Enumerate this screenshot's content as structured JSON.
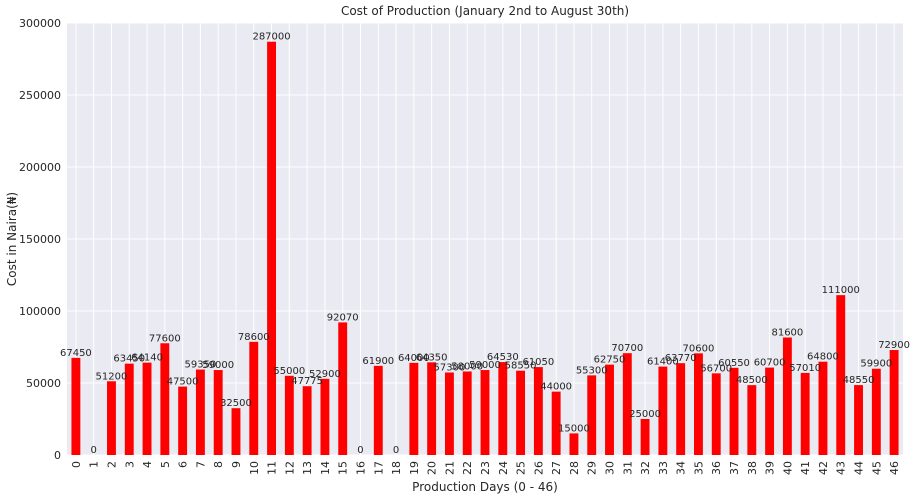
{
  "chart_data": {
    "type": "bar",
    "title": "Cost of Production (January 2nd to August 30th)",
    "xlabel": "Production Days (0 - 46)",
    "ylabel": "Cost in Naira(₦)",
    "ylim": [
      0,
      300000
    ],
    "yticks": [
      "0",
      "50000",
      "100000",
      "150000",
      "200000",
      "250000",
      "300000"
    ],
    "categories": [
      "0",
      "1",
      "2",
      "3",
      "4",
      "5",
      "6",
      "7",
      "8",
      "9",
      "10",
      "11",
      "12",
      "13",
      "14",
      "15",
      "16",
      "17",
      "18",
      "19",
      "20",
      "21",
      "22",
      "23",
      "24",
      "25",
      "26",
      "27",
      "28",
      "29",
      "30",
      "31",
      "32",
      "33",
      "34",
      "35",
      "36",
      "37",
      "38",
      "39",
      "40",
      "41",
      "42",
      "43",
      "44",
      "45",
      "46"
    ],
    "values": [
      67450,
      0,
      51200,
      63450,
      64140,
      77600,
      47500,
      59350,
      59000,
      32500,
      78600,
      287000,
      55000,
      47775,
      52900,
      92070,
      0,
      61900,
      0,
      64000,
      64350,
      57300,
      58000,
      59000,
      64530,
      58550,
      61050,
      44000,
      15000,
      55300,
      62750,
      70700,
      25000,
      61400,
      63770,
      70600,
      56700,
      60550,
      48500,
      60700,
      81600,
      57010,
      64800,
      111000,
      48550,
      59900,
      72900
    ],
    "data_labels": [
      "67450",
      "0",
      "51200",
      "63450",
      "64140",
      "77600",
      "47500",
      "59350",
      "59000",
      "32500",
      "78600",
      "287000",
      "55000",
      "47775",
      "52900",
      "92070",
      "0",
      "61900",
      "0",
      "64000",
      "64350",
      "57300",
      "58000",
      "59000",
      "64530",
      "58550",
      "61050",
      "44000",
      "15000",
      "55300",
      "62750",
      "70700",
      "25000",
      "61400",
      "63770",
      "70600",
      "56700",
      "60550",
      "48500",
      "60700",
      "81600",
      "57010",
      "64800",
      "111000",
      "48550",
      "59900",
      "72900"
    ],
    "grid": true,
    "colors": {
      "bar": "#ff0000",
      "background": "#eaeaf2",
      "grid": "#ffffff",
      "text": "#262626"
    }
  }
}
